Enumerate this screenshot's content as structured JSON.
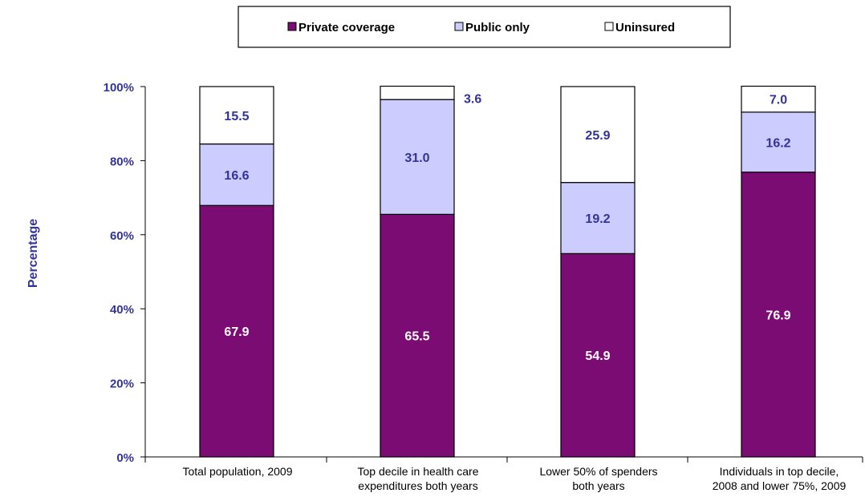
{
  "colors": {
    "private": "#7b0c74",
    "public": "#ccccff",
    "uninsured": "#ffffff",
    "axis_text": "#333399",
    "inner_label_dark": "#333399",
    "inner_label_light": "#ffffff",
    "outline": "#000000"
  },
  "chart_data": {
    "type": "bar",
    "stacked": true,
    "categories": [
      [
        "Total population, 2009"
      ],
      [
        "Top decile in health care",
        "expenditures both years"
      ],
      [
        "Lower 50% of spenders",
        "both years"
      ],
      [
        "Individuals in top decile,",
        "2008 and lower 75%, 2009"
      ]
    ],
    "series": [
      {
        "name": "Private coverage",
        "values": [
          67.9,
          65.5,
          54.9,
          76.9
        ]
      },
      {
        "name": "Public only",
        "values": [
          16.6,
          31.0,
          19.2,
          16.2
        ]
      },
      {
        "name": "Uninsured",
        "values": [
          15.5,
          3.6,
          25.9,
          7.0
        ]
      }
    ],
    "value_labels": [
      [
        "67.9",
        "65.5",
        "54.9",
        "76.9"
      ],
      [
        "16.6",
        "31.0",
        "19.2",
        "16.2"
      ],
      [
        "15.5",
        "3.6",
        "25.9",
        "7.0"
      ]
    ],
    "ylabel": "Percentage",
    "ylim": [
      0,
      100
    ],
    "yticks": [
      0,
      20,
      40,
      60,
      80,
      100
    ],
    "ytick_labels": [
      "0%",
      "20%",
      "40%",
      "60%",
      "80%",
      "100%"
    ],
    "legend_position": "top",
    "grid": false
  }
}
